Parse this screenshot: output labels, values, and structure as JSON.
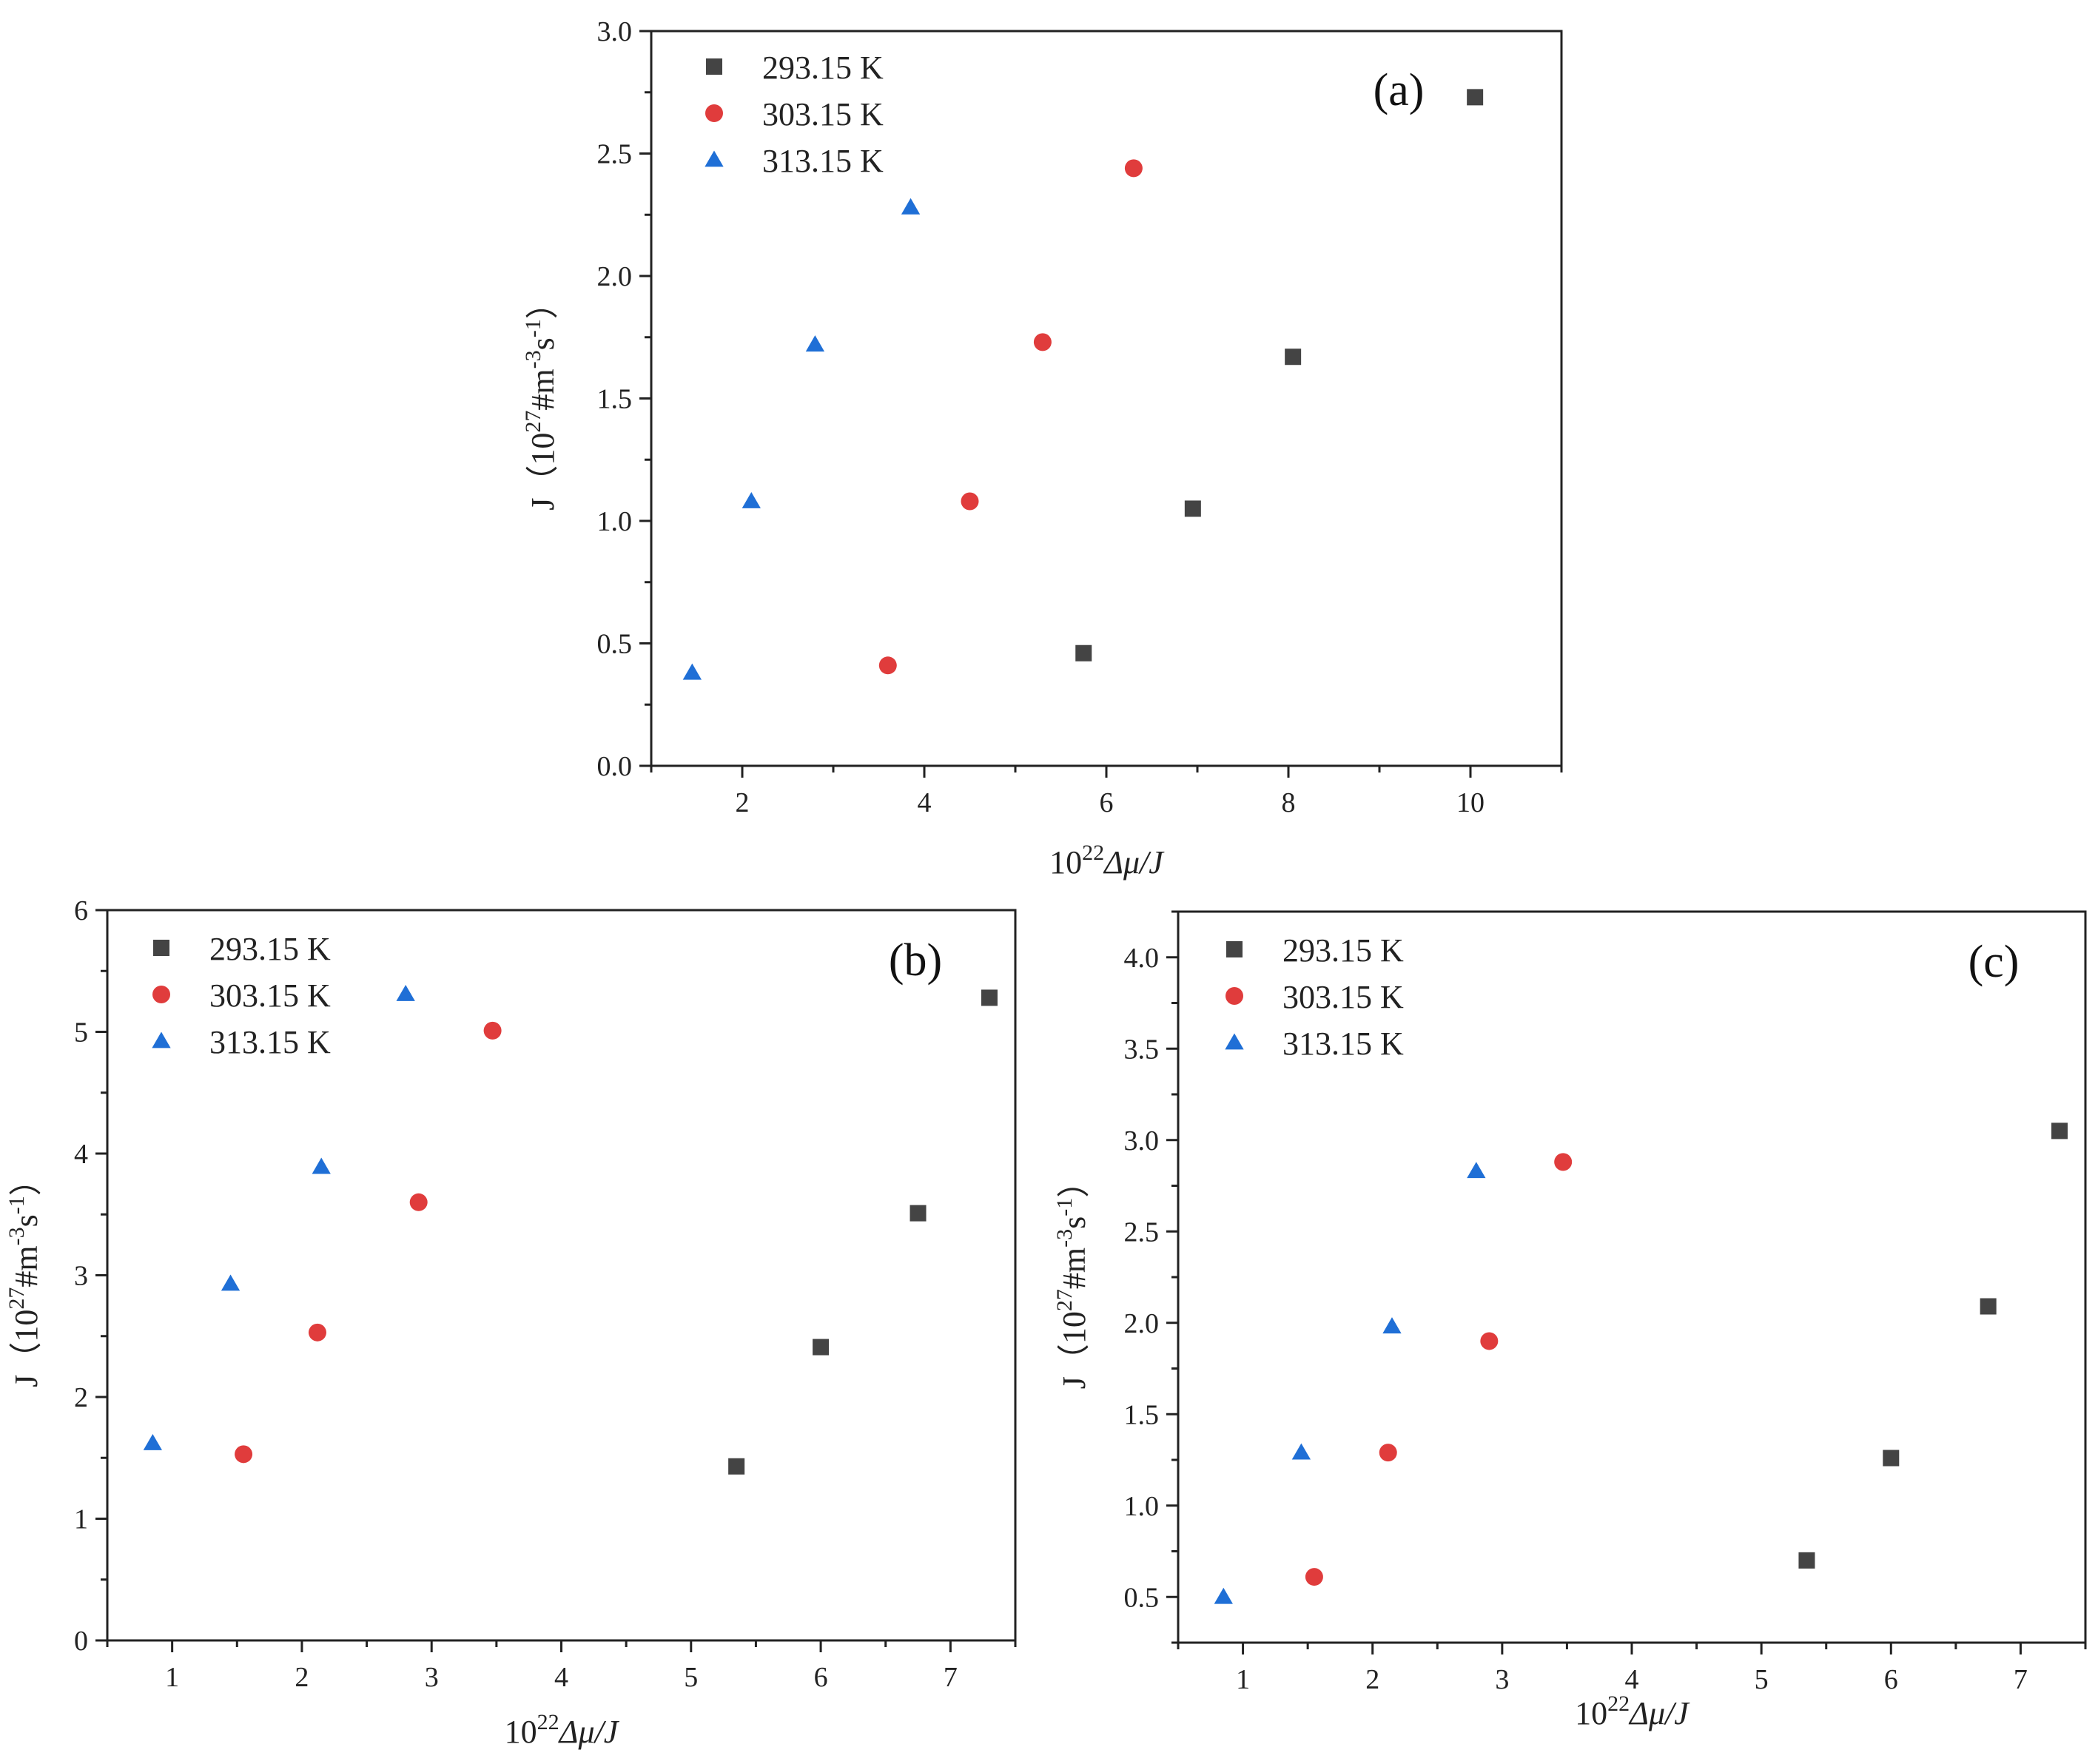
{
  "chart_data": [
    {
      "type": "scatter",
      "panel_label": "(a)",
      "xlabel": {
        "base": "10",
        "sup": "22",
        "rest": "Δμ/J"
      },
      "ylabel": {
        "prefix": "J（10",
        "sup1": "27",
        "mid": "#m",
        "sup2": "-3",
        "mid2": "s",
        "sup3": "-1",
        "suffix": "）"
      },
      "xlim": [
        1.0,
        11.0
      ],
      "ylim": [
        0.0,
        3.0
      ],
      "xticks": [
        2,
        4,
        6,
        8,
        10
      ],
      "xtick_labels": [
        "2",
        "4",
        "6",
        "8",
        "10"
      ],
      "yticks": [
        0.0,
        0.5,
        1.0,
        1.5,
        2.0,
        2.5,
        3.0
      ],
      "ytick_labels": [
        "0.0",
        "0.5",
        "1.0",
        "1.5",
        "2.0",
        "2.5",
        "3.0"
      ],
      "legend": "top-left",
      "series": [
        {
          "name": "293.15 K",
          "marker": "square",
          "color": "#444444",
          "x": [
            5.75,
            6.95,
            8.05,
            10.05
          ],
          "y": [
            0.46,
            1.05,
            1.67,
            2.73
          ]
        },
        {
          "name": "303.15 K",
          "marker": "circle",
          "color": "#e03c3c",
          "x": [
            3.6,
            4.5,
            5.3,
            6.3
          ],
          "y": [
            0.41,
            1.08,
            1.73,
            2.44
          ]
        },
        {
          "name": "313.15 K",
          "marker": "triangle",
          "color": "#1f6fd6",
          "x": [
            1.45,
            2.1,
            2.8,
            3.85
          ],
          "y": [
            0.38,
            1.08,
            1.72,
            2.28
          ]
        }
      ]
    },
    {
      "type": "scatter",
      "panel_label": "(b)",
      "xlabel": {
        "base": "10",
        "sup": "22",
        "rest": "Δμ/J"
      },
      "ylabel": {
        "prefix": "J（10",
        "sup1": "27",
        "mid": "#m",
        "sup2": "-3",
        "mid2": "s",
        "sup3": "-1",
        "suffix": "）"
      },
      "xlim": [
        0.5,
        7.5
      ],
      "ylim": [
        0,
        6
      ],
      "xticks": [
        1,
        2,
        3,
        4,
        5,
        6,
        7
      ],
      "xtick_labels": [
        "1",
        "2",
        "3",
        "4",
        "5",
        "6",
        "7"
      ],
      "yticks": [
        0,
        1,
        2,
        3,
        4,
        5,
        6
      ],
      "ytick_labels": [
        "0",
        "1",
        "2",
        "3",
        "4",
        "5",
        "6"
      ],
      "legend": "top-left",
      "series": [
        {
          "name": "293.15 K",
          "marker": "square",
          "color": "#444444",
          "x": [
            5.35,
            6.0,
            6.75,
            7.3
          ],
          "y": [
            1.43,
            2.41,
            3.51,
            5.28
          ]
        },
        {
          "name": "303.15 K",
          "marker": "circle",
          "color": "#e03c3c",
          "x": [
            1.55,
            2.12,
            2.9,
            3.47
          ],
          "y": [
            1.53,
            2.53,
            3.6,
            5.01
          ]
        },
        {
          "name": "313.15 K",
          "marker": "triangle",
          "color": "#1f6fd6",
          "x": [
            0.85,
            1.45,
            2.15,
            2.8
          ],
          "y": [
            1.62,
            2.93,
            3.89,
            5.31
          ]
        }
      ]
    },
    {
      "type": "scatter",
      "panel_label": "(c)",
      "xlabel": {
        "base": "10",
        "sup": "22",
        "rest": "Δμ/J"
      },
      "ylabel": {
        "prefix": "J（10",
        "sup1": "27",
        "mid": "#m",
        "sup2": "-3",
        "mid2": "s",
        "sup3": "-1",
        "suffix": "）"
      },
      "xlim": [
        0.5,
        7.5
      ],
      "ylim": [
        0.25,
        4.25
      ],
      "xticks": [
        1,
        2,
        3,
        4,
        5,
        6,
        7
      ],
      "xtick_labels": [
        "1",
        "2",
        "3",
        "4",
        "5",
        "6",
        "7"
      ],
      "yticks": [
        0.5,
        1.0,
        1.5,
        2.0,
        2.5,
        3.0,
        3.5,
        4.0
      ],
      "ytick_labels": [
        "0.5",
        "1.0",
        "1.5",
        "2.0",
        "2.5",
        "3.0",
        "3.5",
        "4.0"
      ],
      "legend": "top-left",
      "series": [
        {
          "name": "293.15 K",
          "marker": "square",
          "color": "#444444",
          "x": [
            5.35,
            6.0,
            6.75,
            7.3
          ],
          "y": [
            0.7,
            1.26,
            2.09,
            3.05
          ]
        },
        {
          "name": "303.15 K",
          "marker": "circle",
          "color": "#e03c3c",
          "x": [
            1.55,
            2.12,
            2.9,
            3.47
          ],
          "y": [
            0.61,
            1.29,
            1.9,
            2.88
          ]
        },
        {
          "name": "313.15 K",
          "marker": "triangle",
          "color": "#1f6fd6",
          "x": [
            0.85,
            1.45,
            2.15,
            2.8
          ],
          "y": [
            0.5,
            1.29,
            1.98,
            2.83
          ]
        }
      ]
    }
  ]
}
